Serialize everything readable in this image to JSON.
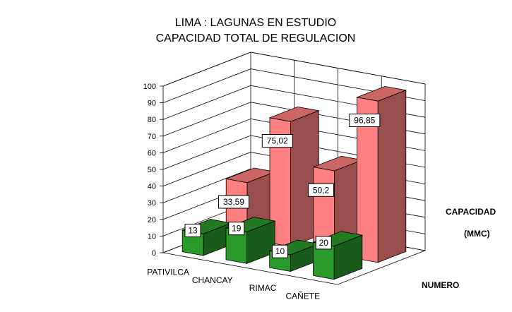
{
  "chart_data": {
    "type": "bar",
    "title": "LIMA : LAGUNAS EN ESTUDIO",
    "subtitle": "CAPACIDAD TOTAL DE REGULACION",
    "categories": [
      "PATIVILCA",
      "CHANCAY",
      "RIMAC",
      "CAÑETE"
    ],
    "series": [
      {
        "name": "NUMERO",
        "values": [
          13,
          19,
          10,
          20
        ],
        "labels": [
          "13",
          "19",
          "10",
          "20"
        ],
        "color": "#2a9a2a"
      },
      {
        "name": "CAPACIDAD (MMC)",
        "name_line1": "CAPACIDAD",
        "name_line2": "(MMC)",
        "values": [
          33.59,
          75.02,
          50.2,
          96.85
        ],
        "labels": [
          "33,59",
          "75,02",
          "50,2",
          "96,85"
        ],
        "color": "#ff8080"
      }
    ],
    "ylim": [
      0,
      100
    ],
    "yticks": [
      "0",
      "10",
      "20",
      "30",
      "40",
      "50",
      "60",
      "70",
      "80",
      "90",
      "100"
    ],
    "grid": true,
    "three_d": true
  }
}
